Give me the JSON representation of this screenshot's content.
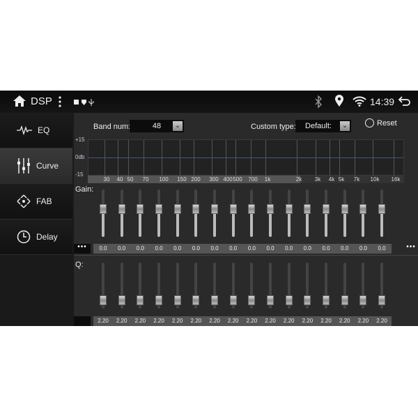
{
  "header": {
    "title": "DSP",
    "time": "14:39",
    "icons": [
      "home-icon",
      "more-vert-icon",
      "image-icon",
      "shield-icon",
      "usb-icon",
      "bluetooth-icon",
      "location-icon",
      "wifi-icon",
      "back-icon"
    ]
  },
  "sidebar": {
    "items": [
      {
        "label": "EQ",
        "icon": "waveform-icon"
      },
      {
        "label": "Curve",
        "icon": "sliders-icon",
        "selected": true
      },
      {
        "label": "FAB",
        "icon": "fader-balance-icon"
      },
      {
        "label": "Delay",
        "icon": "timer-icon"
      }
    ]
  },
  "controls": {
    "band_num_label": "Band num:",
    "band_num_value": "48",
    "custom_type_label": "Custom type:",
    "custom_type_value": "Default:",
    "reset_label": "Reset"
  },
  "graph": {
    "y_labels": [
      "+15",
      "0db",
      "-15"
    ],
    "freqs": [
      "30",
      "40",
      "50",
      "70",
      "100",
      "150",
      "200",
      "300",
      "400",
      "500",
      "700",
      "1k",
      "2k",
      "3k",
      "4k",
      "5k",
      "7k",
      "10k",
      "16k"
    ]
  },
  "gain": {
    "label": "Gain:",
    "values": [
      "0.0",
      "0.0",
      "0.0",
      "0.0",
      "0.0",
      "0.0",
      "0.0",
      "0.0",
      "0.0",
      "0.0",
      "0.0",
      "0.0",
      "0.0",
      "0.0",
      "0.0",
      "0.0"
    ],
    "more": "•••"
  },
  "q": {
    "label": "Q:",
    "values": [
      "2.20",
      "2.20",
      "2.20",
      "2.20",
      "2.20",
      "2.20",
      "2.20",
      "2.20",
      "2.20",
      "2.20",
      "2.20",
      "2.20",
      "2.20",
      "2.20",
      "2.20",
      "2.20"
    ]
  }
}
